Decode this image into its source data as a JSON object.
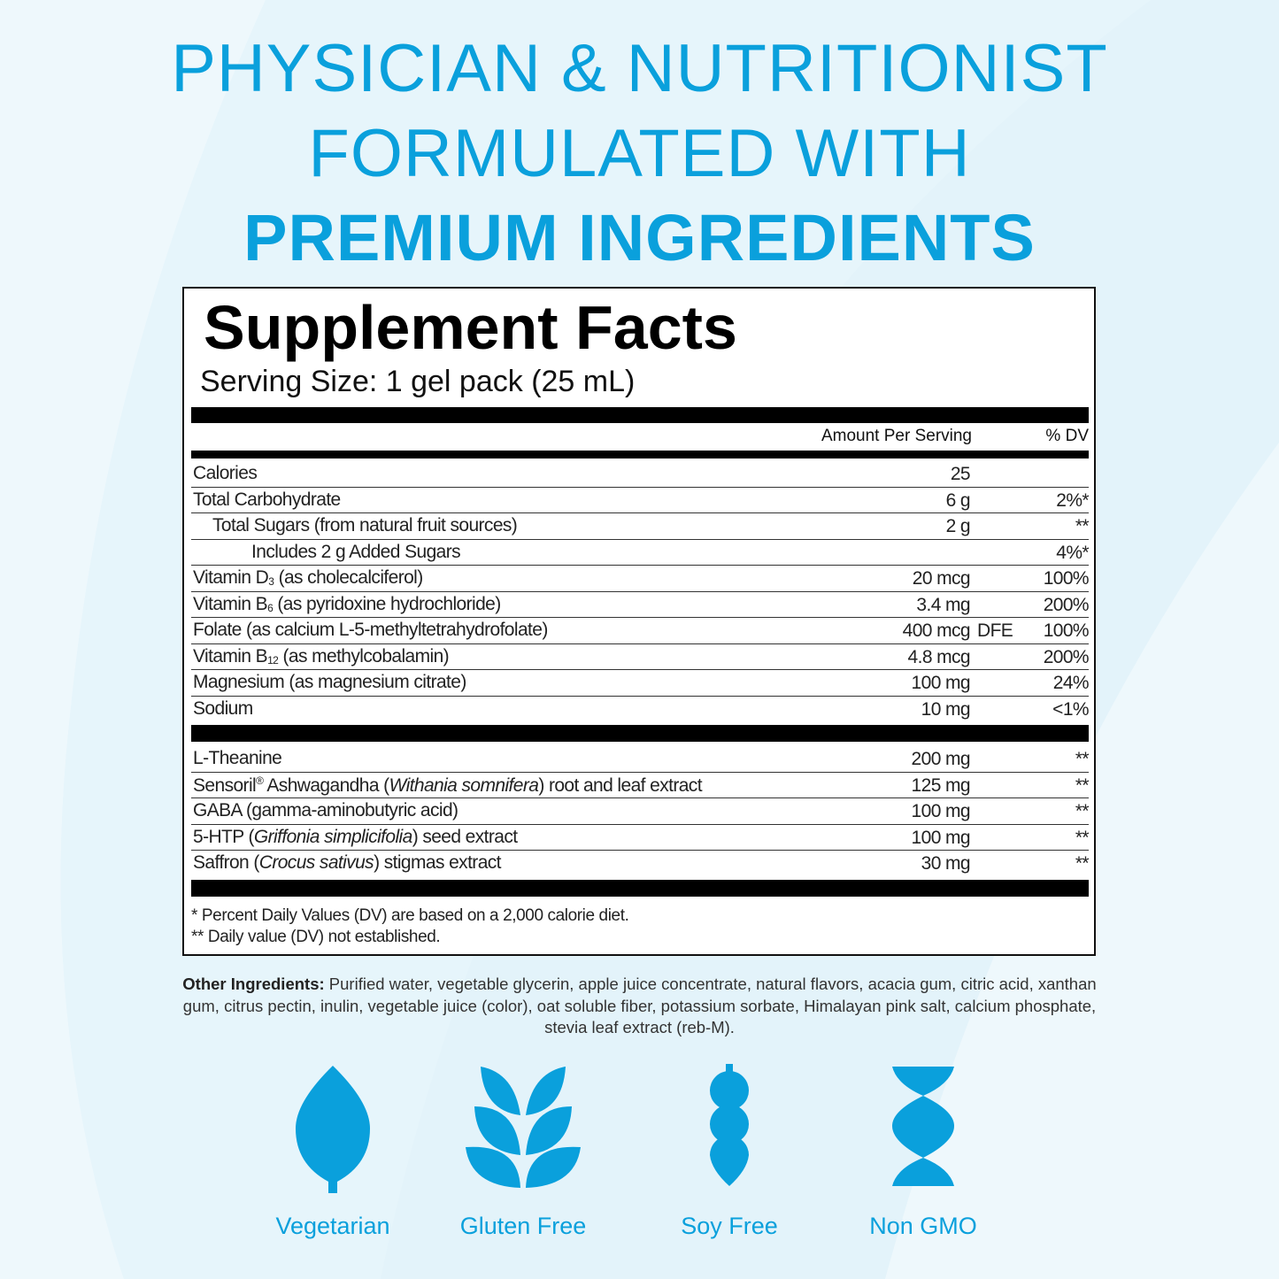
{
  "colors": {
    "accent": "#0aa0dc",
    "background": "#e3f3fa"
  },
  "headline": {
    "line1": "PHYSICIAN & NUTRITIONIST",
    "line2": "FORMULATED WITH",
    "line3": "PREMIUM INGREDIENTS"
  },
  "facts": {
    "title": "Supplement Facts",
    "serving_size": "Serving Size: 1 gel pack (25 mL)",
    "col_amount": "Amount Per Serving",
    "col_dv": "% DV",
    "nutrients": [
      {
        "name": [
          {
            "t": "Calories"
          }
        ],
        "amount": "25",
        "dv": ""
      },
      {
        "name": [
          {
            "t": "Total Carbohydrate"
          }
        ],
        "amount": "6 g",
        "dv": "2%*"
      },
      {
        "name": [
          {
            "t": "Total Sugars (from natural fruit sources)"
          }
        ],
        "indent": 1,
        "amount": "2 g",
        "dv": "**"
      },
      {
        "name": [
          {
            "t": "Includes 2 g Added Sugars"
          }
        ],
        "indent": 2,
        "amount": "",
        "dv": "4%*"
      },
      {
        "name": [
          {
            "t": "Vitamin D"
          },
          {
            "t": "3",
            "f": "sub"
          },
          {
            "t": " (as cholecalciferol)"
          }
        ],
        "amount": "20 mcg",
        "dv": "100%"
      },
      {
        "name": [
          {
            "t": "Vitamin B"
          },
          {
            "t": "6",
            "f": "sub"
          },
          {
            "t": " (as pyridoxine hydrochloride)"
          }
        ],
        "amount": "3.4 mg",
        "dv": "200%"
      },
      {
        "name": [
          {
            "t": "Folate (as calcium L-5-methyltetrahydrofolate)"
          }
        ],
        "amount": "400 mcg",
        "unit2": "DFE",
        "dv": "100%"
      },
      {
        "name": [
          {
            "t": "Vitamin B"
          },
          {
            "t": "12",
            "f": "sub"
          },
          {
            "t": " (as methylcobalamin)"
          }
        ],
        "amount": "4.8 mcg",
        "dv": "200%"
      },
      {
        "name": [
          {
            "t": "Magnesium (as magnesium citrate)"
          }
        ],
        "amount": "100 mg",
        "dv": "24%"
      },
      {
        "name": [
          {
            "t": "Sodium"
          }
        ],
        "amount": "10 mg",
        "dv": "<1%"
      }
    ],
    "other_actives": [
      {
        "name": [
          {
            "t": "L-Theanine"
          }
        ],
        "amount": "200 mg",
        "dv": "**"
      },
      {
        "name": [
          {
            "t": "Sensoril"
          },
          {
            "t": "®",
            "f": "sup"
          },
          {
            "t": " Ashwagandha ("
          },
          {
            "t": "Withania somnifera",
            "f": "it"
          },
          {
            "t": ") root and leaf extract"
          }
        ],
        "amount": "125 mg",
        "dv": "**"
      },
      {
        "name": [
          {
            "t": "GABA (gamma-aminobutyric acid)"
          }
        ],
        "amount": "100 mg",
        "dv": "**"
      },
      {
        "name": [
          {
            "t": "5-HTP ("
          },
          {
            "t": "Griffonia simplicifolia",
            "f": "it"
          },
          {
            "t": ") seed extract"
          }
        ],
        "amount": "100 mg",
        "dv": "**"
      },
      {
        "name": [
          {
            "t": "Saffron ("
          },
          {
            "t": "Crocus sativus",
            "f": "it"
          },
          {
            "t": ") stigmas extract"
          }
        ],
        "amount": "30 mg",
        "dv": "**"
      }
    ],
    "footnote1": "* Percent Daily Values (DV) are based on a 2,000 calorie diet.",
    "footnote2": "** Daily value (DV) not established."
  },
  "other_ingredients": {
    "label": "Other Ingredients:",
    "text": " Purified water, vegetable glycerin, apple juice concentrate, natural flavors, acacia gum, citric acid, xanthan gum, citrus pectin, inulin, vegetable juice (color), oat soluble fiber, potassium sorbate, Himalayan pink salt, calcium phosphate, stevia leaf extract (reb-M)."
  },
  "badges": [
    {
      "label": "Vegetarian",
      "icon": "leaf-icon"
    },
    {
      "label": "Gluten Free",
      "icon": "wheat-icon"
    },
    {
      "label": "Soy Free",
      "icon": "soybean-icon"
    },
    {
      "label": "Non GMO",
      "icon": "dna-icon"
    }
  ]
}
